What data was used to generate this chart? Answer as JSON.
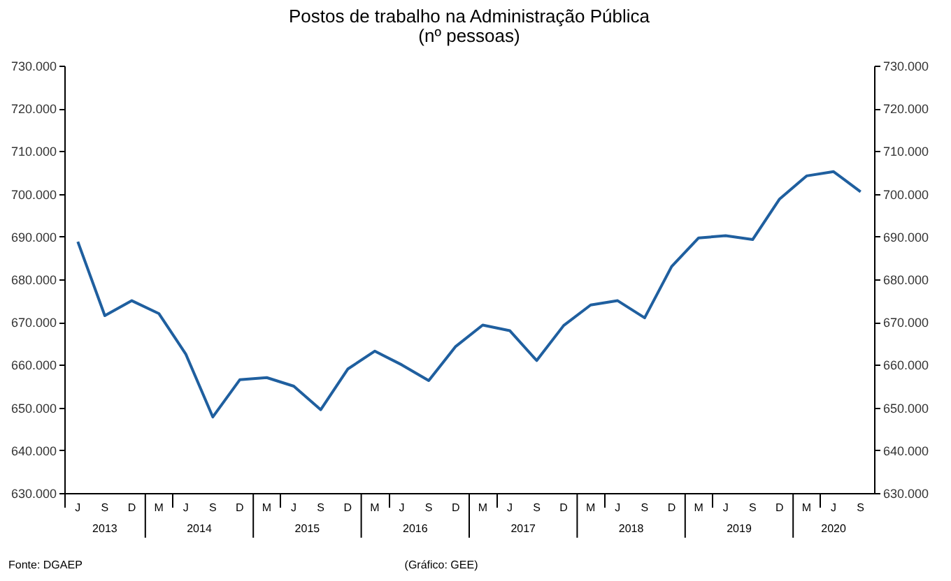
{
  "chart_data": {
    "type": "line",
    "title": "Postos de trabalho na Administração Pública",
    "subtitle": "(nº pessoas)",
    "categories": [
      "J",
      "S",
      "D",
      "M",
      "J",
      "S",
      "D",
      "M",
      "J",
      "S",
      "D",
      "M",
      "J",
      "S",
      "D",
      "M",
      "J",
      "S",
      "D",
      "M",
      "J",
      "S",
      "D",
      "M",
      "J",
      "S",
      "D",
      "M",
      "J",
      "S"
    ],
    "series": [
      {
        "color": "#1f5f9f",
        "values": [
          688800,
          671500,
          675000,
          672000,
          662500,
          647800,
          656500,
          657000,
          655000,
          649500,
          659000,
          663200,
          660000,
          656300,
          664300,
          669300,
          668000,
          661000,
          669200,
          674000,
          675000,
          671000,
          683000,
          689700,
          690200,
          689300,
          698800,
          704200,
          705200,
          700500
        ]
      }
    ],
    "ylim": [
      630000,
      730000
    ],
    "yticks": [
      {
        "value": 630000,
        "label": "630.000"
      },
      {
        "value": 640000,
        "label": "640.000"
      },
      {
        "value": 650000,
        "label": "650.000"
      },
      {
        "value": 660000,
        "label": "660.000"
      },
      {
        "value": 670000,
        "label": "670.000"
      },
      {
        "value": 680000,
        "label": "680.000"
      },
      {
        "value": 690000,
        "label": "690.000"
      },
      {
        "value": 700000,
        "label": "700.000"
      },
      {
        "value": 710000,
        "label": "710.000"
      },
      {
        "value": 720000,
        "label": "720.000"
      },
      {
        "value": 730000,
        "label": "730.000"
      }
    ],
    "y2lim": [
      630000,
      730000
    ],
    "y2ticks": [
      {
        "value": 630000,
        "label": "630.000"
      },
      {
        "value": 640000,
        "label": "640.000"
      },
      {
        "value": 650000,
        "label": "650.000"
      },
      {
        "value": 660000,
        "label": "660.000"
      },
      {
        "value": 670000,
        "label": "670.000"
      },
      {
        "value": 680000,
        "label": "680.000"
      },
      {
        "value": 690000,
        "label": "690.000"
      },
      {
        "value": 700000,
        "label": "700.000"
      },
      {
        "value": 710000,
        "label": "710.000"
      },
      {
        "value": 720000,
        "label": "720.000"
      },
      {
        "value": 730000,
        "label": "730.000"
      }
    ],
    "grid": false,
    "legend": false,
    "marker": "none",
    "line_style": "solid",
    "annotations": [
      "2013",
      "2014",
      "2015",
      "2016",
      "2017",
      "2018",
      "2019",
      "2020",
      "Fonte: DGAEP",
      "(Gráfico: GEE)"
    ]
  }
}
